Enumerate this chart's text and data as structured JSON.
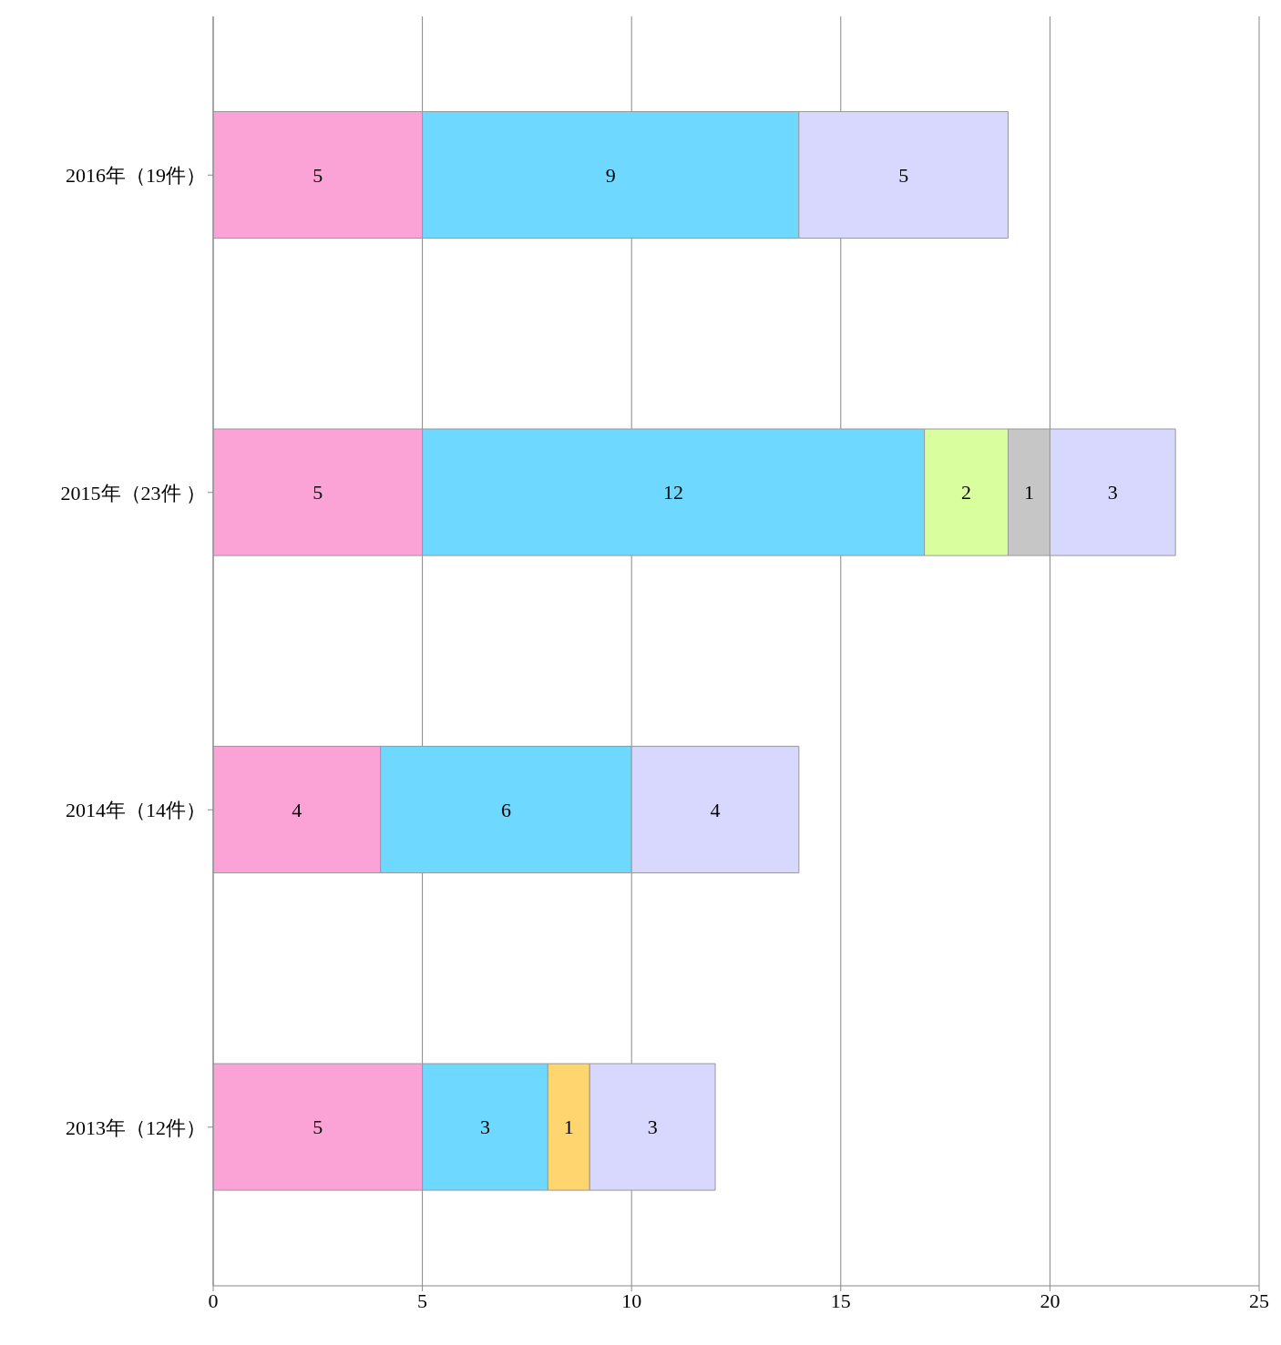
{
  "chart_data": {
    "type": "bar",
    "orientation": "horizontal",
    "stacked": true,
    "categories": [
      "2016年（19件）",
      "2015年（23件 ）",
      "2014年（14件）",
      "2013年（12件）"
    ],
    "series": [
      {
        "color": "#fba3d6",
        "values": [
          5,
          5,
          4,
          5
        ]
      },
      {
        "color": "#6fd8fe",
        "values": [
          9,
          12,
          6,
          3
        ]
      },
      {
        "color": "#d9fe9e",
        "values": [
          null,
          2,
          null,
          null
        ]
      },
      {
        "color": "#c6c6c6",
        "values": [
          null,
          1,
          null,
          null
        ]
      },
      {
        "color": "#fed56e",
        "values": [
          null,
          null,
          null,
          1
        ]
      },
      {
        "color": "#d8d8fe",
        "values": [
          5,
          3,
          4,
          3
        ]
      }
    ],
    "xlim": [
      0,
      25
    ],
    "xticks": [
      0,
      5,
      10,
      15,
      20,
      25
    ],
    "grid": "x",
    "data_labels": true,
    "legend": false
  }
}
